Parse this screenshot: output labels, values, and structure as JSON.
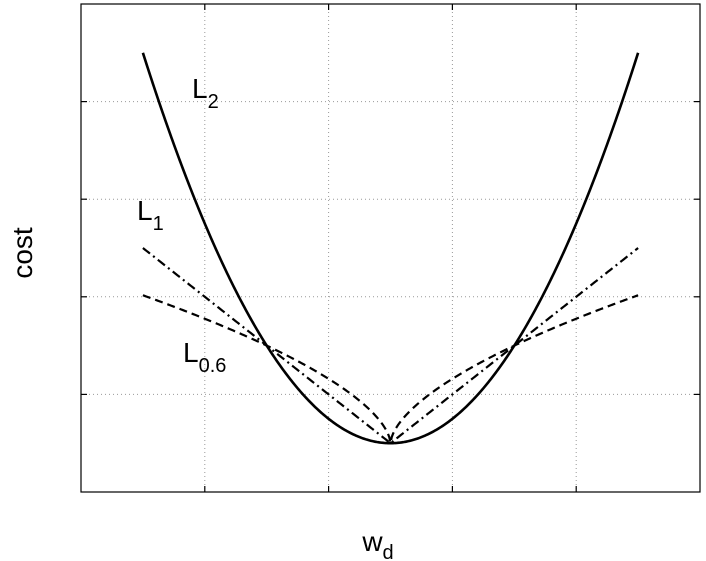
{
  "chart_data": {
    "type": "line",
    "xlabel": "w",
    "xlabel_subscript": "d",
    "ylabel": "cost",
    "xlim": [
      -2.5,
      2.5
    ],
    "ylim": [
      -0.5,
      4.5
    ],
    "grid": true,
    "tick_labels_visible": false,
    "x_ticks": [
      -1.5,
      -0.5,
      0.5,
      1.5
    ],
    "y_ticks": [
      0.5,
      1.5,
      2.5,
      3.5
    ],
    "series": [
      {
        "name": "L",
        "name_subscript": "2",
        "style": "solid",
        "exponent": 2,
        "x": [
          -2.0,
          -1.5,
          -1.0,
          -0.5,
          0.0,
          0.5,
          1.0,
          1.5,
          2.0
        ],
        "y": [
          4.0,
          2.25,
          1.0,
          0.25,
          0.0,
          0.25,
          1.0,
          2.25,
          4.0
        ]
      },
      {
        "name": "L",
        "name_subscript": "1",
        "style": "dash-dot",
        "exponent": 1,
        "x": [
          -2.0,
          -1.0,
          0.0,
          1.0,
          2.0
        ],
        "y": [
          2.0,
          1.0,
          0.0,
          1.0,
          2.0
        ]
      },
      {
        "name": "L",
        "name_subscript": "0.6",
        "style": "dashed",
        "exponent": 0.6,
        "x": [
          -2.0,
          -1.5,
          -1.0,
          -0.5,
          -0.1,
          0.0,
          0.1,
          0.5,
          1.0,
          1.5,
          2.0
        ],
        "y": [
          1.52,
          1.28,
          1.0,
          0.66,
          0.25,
          0.0,
          0.25,
          0.66,
          1.0,
          1.28,
          1.52
        ]
      }
    ]
  }
}
